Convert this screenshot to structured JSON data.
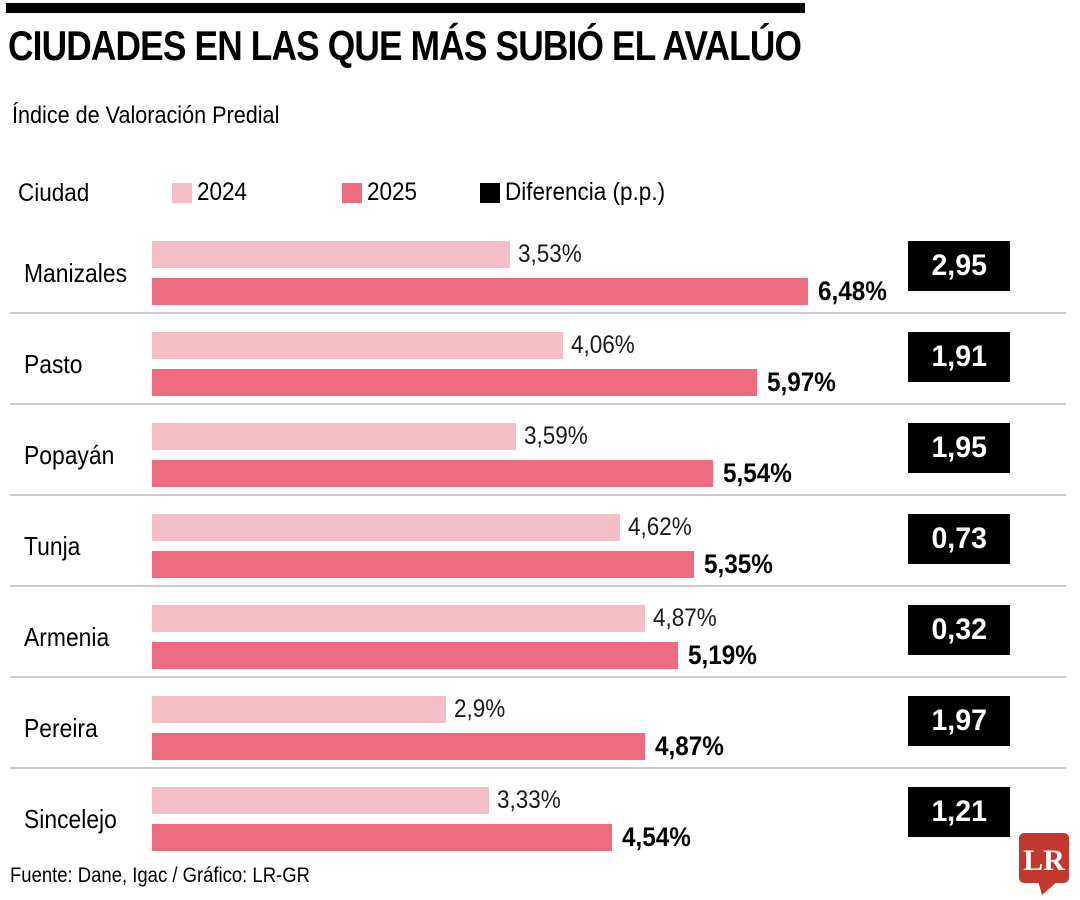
{
  "header": {
    "title": "CIUDADES EN LAS QUE MÁS SUBIÓ EL AVALÚO",
    "subtitle": "Índice de Valoración Predial"
  },
  "legend": {
    "ciudad_label": "Ciudad",
    "items": [
      {
        "label": "2024",
        "color": "#F3BEC5"
      },
      {
        "label": "2025",
        "color": "#ED6B7E"
      },
      {
        "label": "Diferencia (p.p.)",
        "color": "#000000"
      }
    ]
  },
  "chart_data": {
    "type": "bar",
    "orientation": "horizontal",
    "title": "CIUDADES EN LAS QUE MÁS SUBIÓ EL AVALÚO",
    "subtitle": "Índice de Valoración Predial",
    "categories": [
      "Manizales",
      "Pasto",
      "Popayán",
      "Tunja",
      "Armenia",
      "Pereira",
      "Sincelejo"
    ],
    "series": [
      {
        "name": "2024",
        "color": "#F3BEC5",
        "values": [
          3.53,
          4.06,
          3.59,
          4.62,
          4.87,
          2.9,
          3.33
        ],
        "labels": [
          "3,53%",
          "4,06%",
          "3,59%",
          "4,62%",
          "4,87%",
          "2,9%",
          "3,33%"
        ]
      },
      {
        "name": "2025",
        "color": "#ED6B7E",
        "values": [
          6.48,
          5.97,
          5.54,
          5.35,
          5.19,
          4.87,
          4.54
        ],
        "labels": [
          "6,48%",
          "5,97%",
          "5,54%",
          "5,35%",
          "5,19%",
          "4,87%",
          "4,54%"
        ]
      },
      {
        "name": "Diferencia (p.p.)",
        "color": "#000000",
        "values": [
          2.95,
          1.91,
          1.95,
          0.73,
          0.32,
          1.97,
          1.21
        ],
        "labels": [
          "2,95",
          "1,91",
          "1,95",
          "0,73",
          "0,32",
          "1,97",
          "1,21"
        ]
      }
    ],
    "xlim": [
      0,
      6.6
    ],
    "grid": false,
    "legend_position": "top"
  },
  "footer": {
    "source": "Fuente: Dane, Igac / Gráfico: LR-GR",
    "logo_text": "LR",
    "logo_color": "#C2382E"
  }
}
